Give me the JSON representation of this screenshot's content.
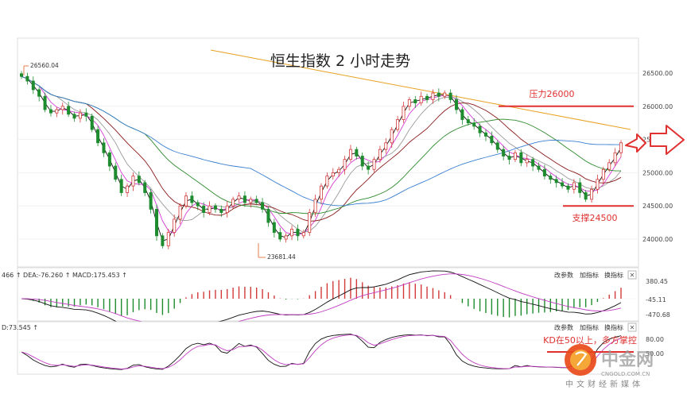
{
  "title": "恒生指数 2 小时走势",
  "chart_data": {
    "type": "candlestick",
    "title": "恒生指数 2 小时走势",
    "y_ticks": [
      24000,
      24500,
      25000,
      25500,
      26000,
      26500
    ],
    "y_tick_labels": [
      "24000.00",
      "24500.00",
      "25000.00",
      "25500.00",
      "26000.00",
      "26500.00"
    ],
    "ylim": [
      23600,
      26800
    ],
    "high_label": "26560.04",
    "low_label": "23681.44",
    "resistance": {
      "label": "压力26000",
      "value": 26000
    },
    "support": {
      "label": "支撑24500",
      "value": 24500
    },
    "closes": [
      26450,
      26380,
      26250,
      26150,
      25950,
      25900,
      25950,
      26000,
      25880,
      25820,
      25900,
      25850,
      25650,
      25450,
      25300,
      25100,
      24900,
      24700,
      24800,
      24950,
      24850,
      24700,
      24450,
      24050,
      23900,
      24100,
      24300,
      24500,
      24650,
      24550,
      24500,
      24400,
      24500,
      24450,
      24400,
      24500,
      24600,
      24650,
      24550,
      24600,
      24550,
      24450,
      24250,
      24100,
      24000,
      24050,
      24150,
      24050,
      24100,
      24400,
      24600,
      24800,
      24950,
      25000,
      25050,
      25200,
      25350,
      25250,
      25100,
      25050,
      25200,
      25350,
      25450,
      25650,
      25800,
      26000,
      26100,
      26050,
      26150,
      26100,
      26200,
      26150,
      26200,
      26100,
      25950,
      25800,
      25750,
      25700,
      25600,
      25550,
      25450,
      25350,
      25250,
      25200,
      25300,
      25150,
      25200,
      25100,
      25050,
      24950,
      24900,
      24850,
      24800,
      24750,
      24850,
      24700,
      24600,
      24750,
      24900,
      25050,
      25150,
      25300,
      25450
    ],
    "ma_colors": [
      "#111111",
      "#d63bd6",
      "#9a9a9a",
      "#8b1a1a",
      "#2e8b2e",
      "#3a7fd0",
      "#e8a020"
    ],
    "macd_panel": {
      "header": "466 ↑ DEA:-76.260 ↑ MACD:175.453 ↑",
      "scale_labels": [
        "380.45",
        "-45.11",
        "-470.68"
      ],
      "buttons": [
        "改参数",
        "加指标",
        "换指标",
        "✕"
      ]
    },
    "kd_panel": {
      "header": "D:73.545 ↑",
      "scale_labels": [
        "80.00",
        "50.00"
      ],
      "annotation": "KD在50以上，多方掌控",
      "buttons": [
        "改参数",
        "加指标",
        "换指标",
        "✕"
      ]
    }
  },
  "watermark": {
    "name": "中金网",
    "domain": "CNGOLD.COM.CN",
    "subtitle": "中文财经新媒体"
  }
}
